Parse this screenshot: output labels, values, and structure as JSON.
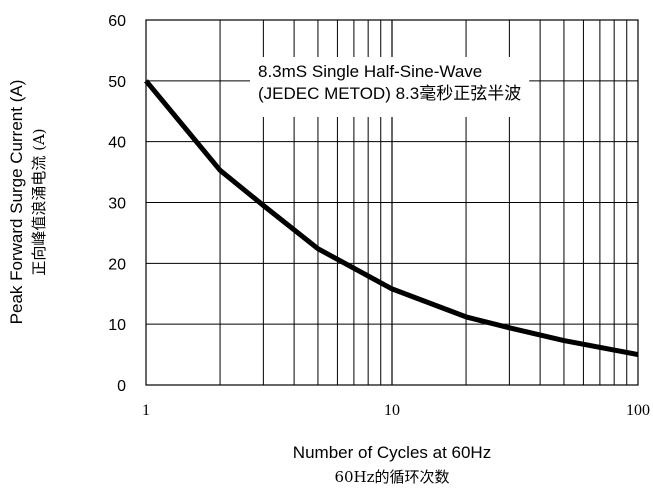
{
  "chart_data": {
    "type": "line",
    "xscale": "log",
    "xlim": [
      1,
      100
    ],
    "ylim": [
      0,
      60
    ],
    "x_ticks": [
      "1",
      "10",
      "100"
    ],
    "y_ticks": [
      "0",
      "10",
      "20",
      "30",
      "40",
      "50",
      "60"
    ],
    "xlabel": "Number of Cycles at 60Hz",
    "xlabel_cn": "60Hz的循环次数",
    "ylabel": "Peak Forward Surge Current (A)",
    "ylabel_cn": "正向峰值浪涌电流 (A)",
    "annotation_line1": "8.3mS Single Half-Sine-Wave",
    "annotation_line2": "(JEDEC METOD)  8.3毫秒正弦半波",
    "grid": true,
    "line_color": "#000000",
    "series": [
      {
        "x": [
          1,
          2,
          3,
          5,
          10,
          20,
          30,
          50,
          100
        ],
        "y": [
          50,
          35.3,
          29.5,
          22.4,
          15.8,
          11.2,
          9.4,
          7.3,
          5.0
        ]
      }
    ]
  }
}
